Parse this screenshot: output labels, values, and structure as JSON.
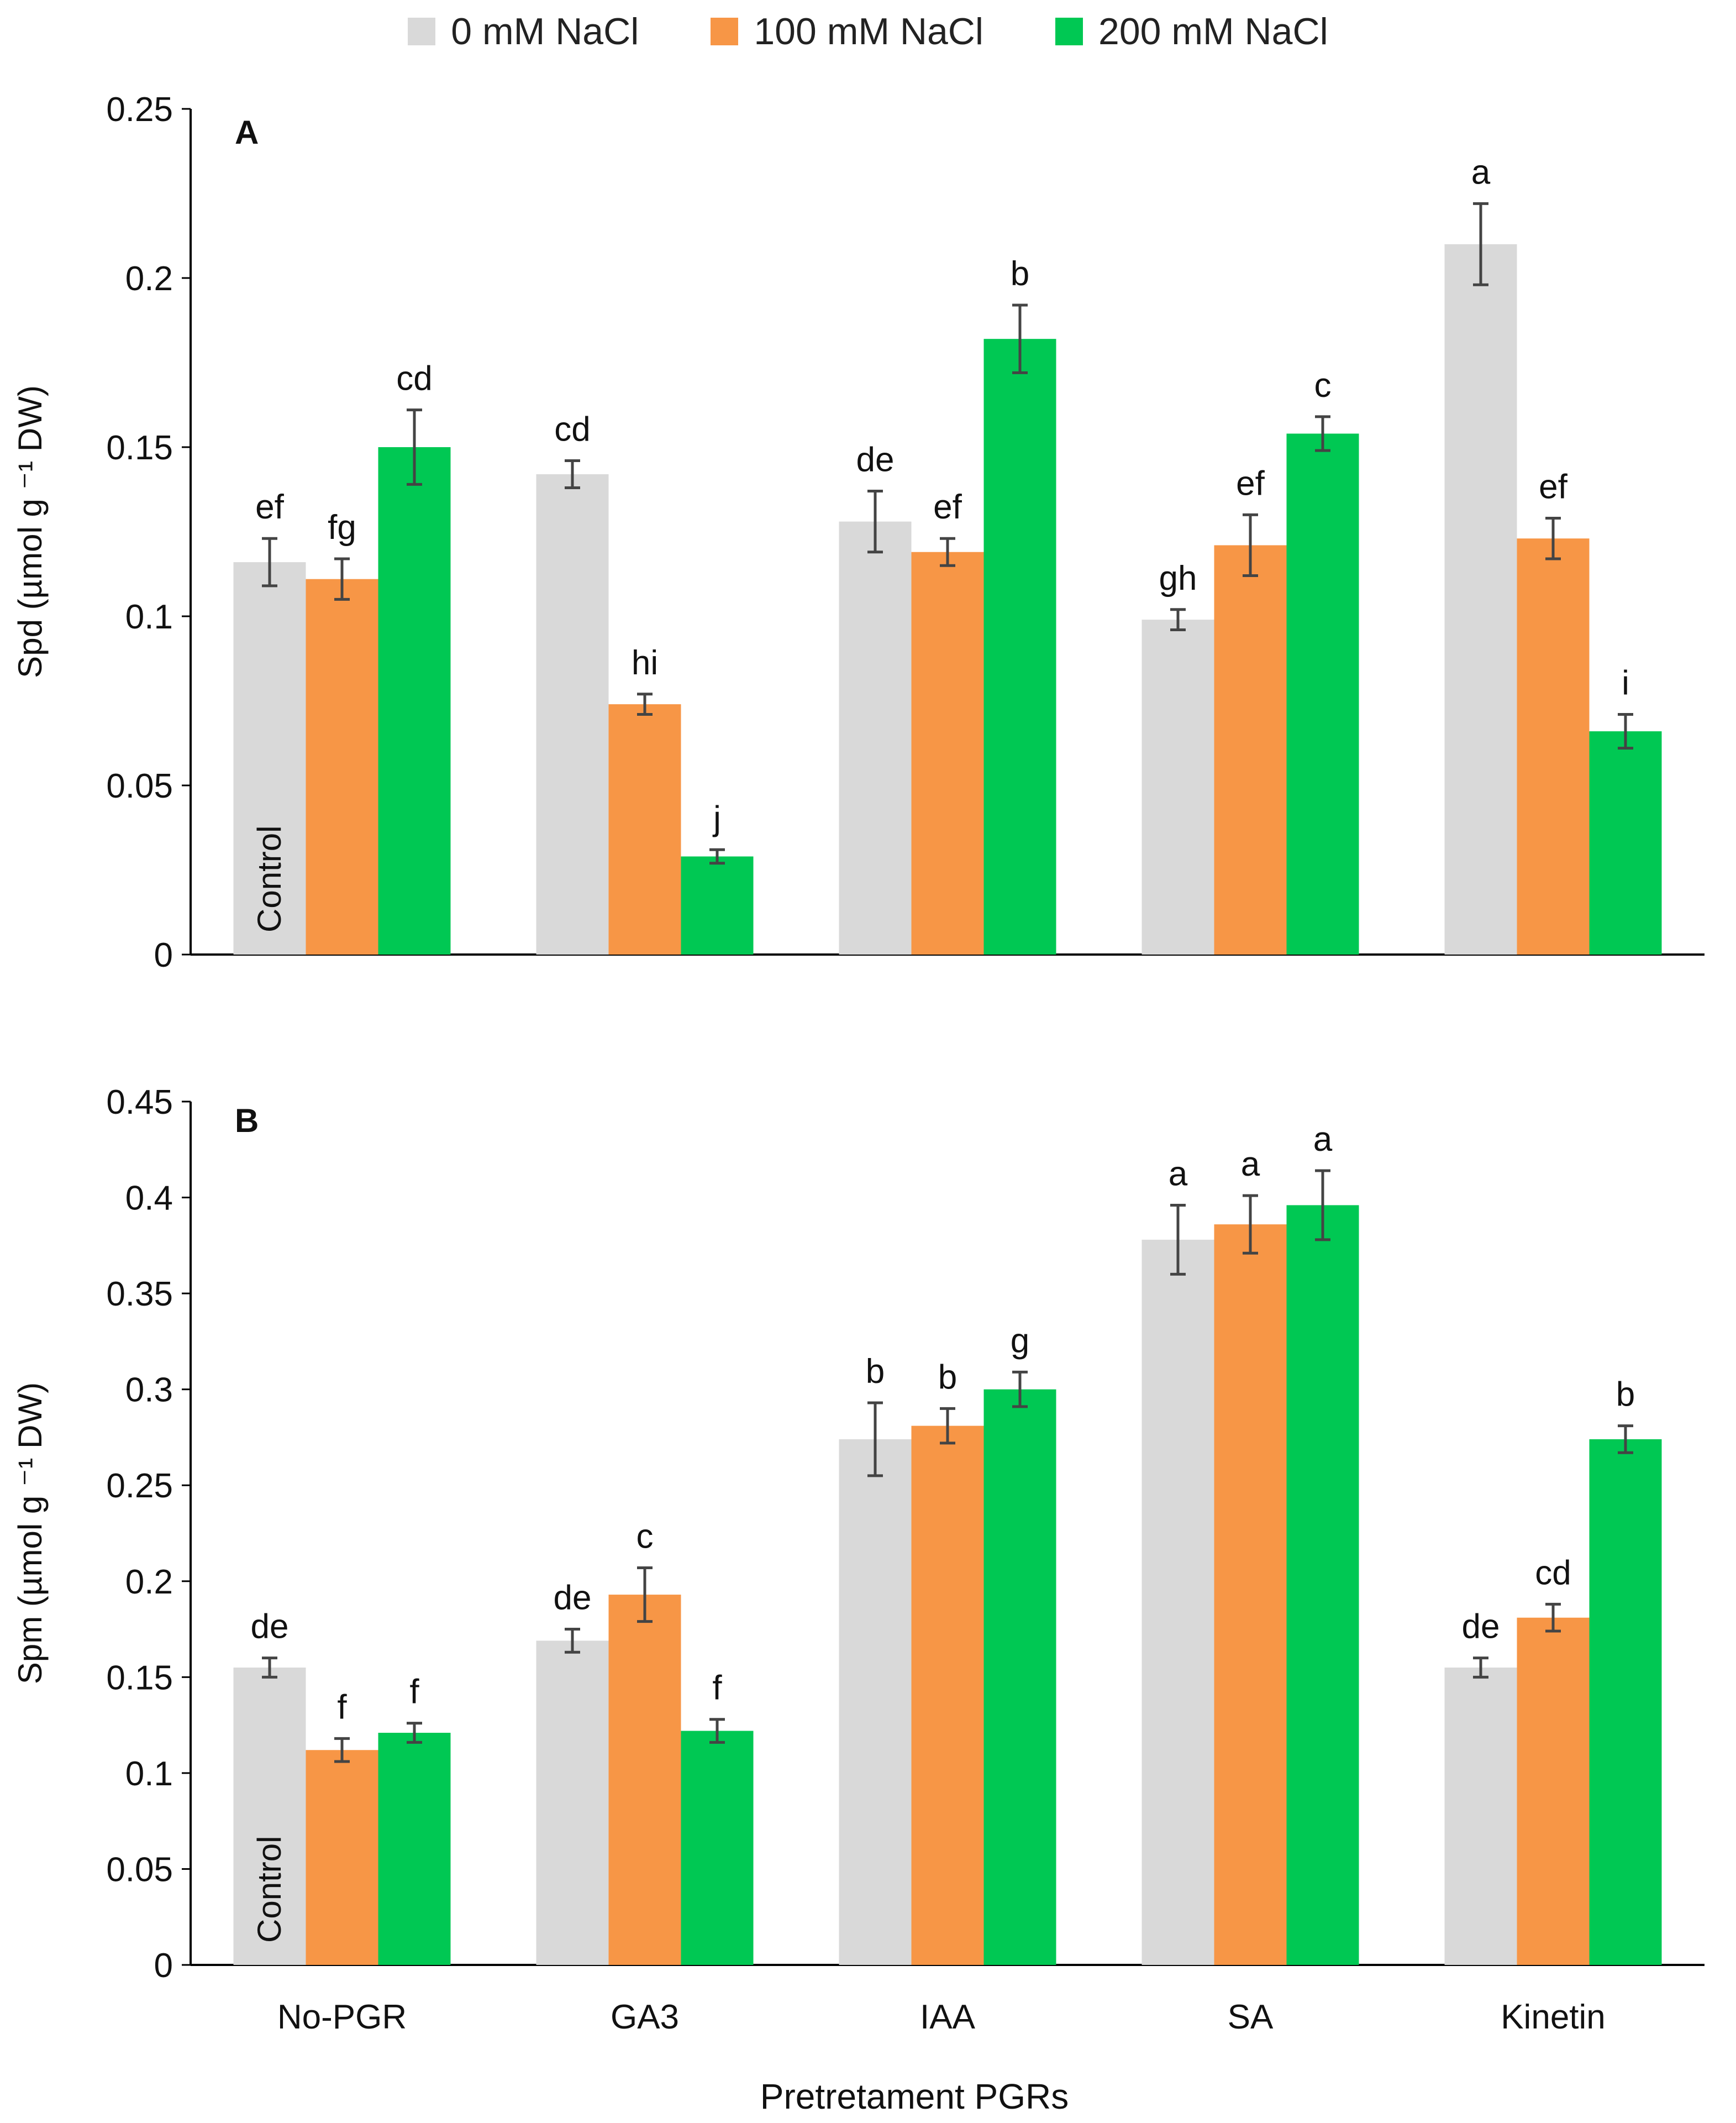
{
  "legend": [
    {
      "label": "0 mM NaCl",
      "color": "#d9d9d9"
    },
    {
      "label": "100 mM NaCl",
      "color": "#f79646"
    },
    {
      "label": "200 mM NaCl",
      "color": "#00c853"
    }
  ],
  "chart_data": [
    {
      "type": "bar",
      "panel": "A",
      "ylabel": "Spd (µmol g ⁻¹ DW)",
      "xlabel": "",
      "ylim": [
        0,
        0.25
      ],
      "yticks": [
        0,
        0.05,
        0.1,
        0.15,
        0.2,
        0.25
      ],
      "ytick_labels": [
        "0",
        "0.05",
        "0.1",
        "0.15",
        "0.2",
        "0.25"
      ],
      "categories": [
        "No-PGR",
        "GA3",
        "IAA",
        "SA",
        "Kinetin"
      ],
      "annotation": "Control",
      "series": [
        {
          "name": "0 mM NaCl",
          "color": "#d9d9d9",
          "values": [
            0.116,
            0.142,
            0.128,
            0.099,
            0.21
          ],
          "errors": [
            0.007,
            0.004,
            0.009,
            0.003,
            0.012
          ],
          "letters": [
            "ef",
            "cd",
            "de",
            "gh",
            "a"
          ]
        },
        {
          "name": "100 mM NaCl",
          "color": "#f79646",
          "values": [
            0.111,
            0.074,
            0.119,
            0.121,
            0.123
          ],
          "errors": [
            0.006,
            0.003,
            0.004,
            0.009,
            0.006
          ],
          "letters": [
            "fg",
            "hi",
            "ef",
            "ef",
            "ef"
          ]
        },
        {
          "name": "200 mM NaCl",
          "color": "#00c853",
          "values": [
            0.15,
            0.029,
            0.182,
            0.154,
            0.066
          ],
          "errors": [
            0.011,
            0.002,
            0.01,
            0.005,
            0.005
          ],
          "letters": [
            "cd",
            "j",
            "b",
            "c",
            "i"
          ]
        }
      ]
    },
    {
      "type": "bar",
      "panel": "B",
      "ylabel": "Spm (µmol g ⁻¹ DW)",
      "xlabel": "Pretretament PGRs",
      "ylim": [
        0,
        0.45
      ],
      "yticks": [
        0,
        0.05,
        0.1,
        0.15,
        0.2,
        0.25,
        0.3,
        0.35,
        0.4,
        0.45
      ],
      "ytick_labels": [
        "0",
        "0.05",
        "0.1",
        "0.15",
        "0.2",
        "0.25",
        "0.3",
        "0.35",
        "0.4",
        "0.45"
      ],
      "categories": [
        "No-PGR",
        "GA3",
        "IAA",
        "SA",
        "Kinetin"
      ],
      "annotation": "Control",
      "series": [
        {
          "name": "0 mM NaCl",
          "color": "#d9d9d9",
          "values": [
            0.155,
            0.169,
            0.274,
            0.378,
            0.155
          ],
          "errors": [
            0.005,
            0.006,
            0.019,
            0.018,
            0.005
          ],
          "letters": [
            "de",
            "de",
            "b",
            "a",
            "de"
          ]
        },
        {
          "name": "100 mM NaCl",
          "color": "#f79646",
          "values": [
            0.112,
            0.193,
            0.281,
            0.386,
            0.181
          ],
          "errors": [
            0.006,
            0.014,
            0.009,
            0.015,
            0.007
          ],
          "letters": [
            "f",
            "c",
            "b",
            "a",
            "cd"
          ]
        },
        {
          "name": "200 mM NaCl",
          "color": "#00c853",
          "values": [
            0.121,
            0.122,
            0.3,
            0.396,
            0.274
          ],
          "errors": [
            0.005,
            0.006,
            0.009,
            0.018,
            0.007
          ],
          "letters": [
            "f",
            "f",
            "g",
            "a",
            "b"
          ]
        }
      ]
    }
  ]
}
